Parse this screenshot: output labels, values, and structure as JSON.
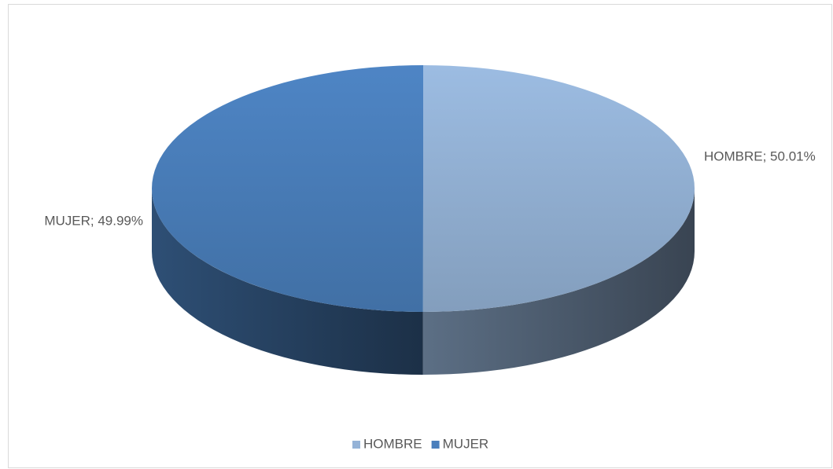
{
  "chart_data": {
    "type": "pie",
    "categories": [
      "HOMBRE",
      "MUJER"
    ],
    "values": [
      50.01,
      49.99
    ],
    "value_labels": [
      "HOMBRE; 50.01%",
      "MUJER; 49.99%"
    ],
    "colors": [
      "#95b3d7",
      "#4a7fbc"
    ],
    "legend": "bottom"
  }
}
